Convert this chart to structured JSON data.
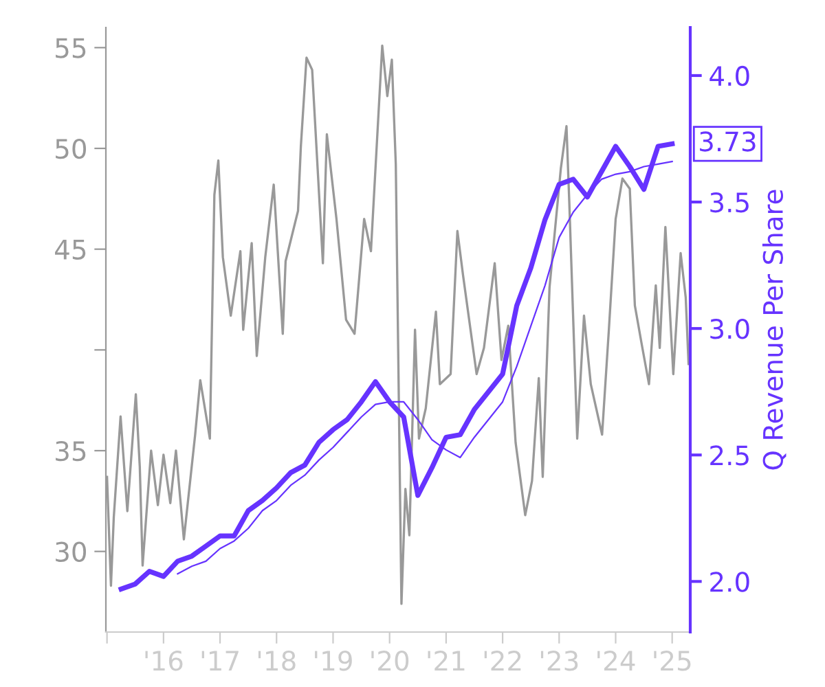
{
  "chart_data": {
    "type": "line",
    "y2label": "Q Revenue Per Share",
    "xlim": [
      2014.98,
      2025.32
    ],
    "xticks": [
      {
        "value": 2015,
        "label": null
      },
      {
        "value": 2016,
        "label": "'16"
      },
      {
        "value": 2017,
        "label": "'17"
      },
      {
        "value": 2018,
        "label": "'18"
      },
      {
        "value": 2019,
        "label": "'19"
      },
      {
        "value": 2020,
        "label": "'20"
      },
      {
        "value": 2021,
        "label": "'21"
      },
      {
        "value": 2022,
        "label": "'22"
      },
      {
        "value": 2023,
        "label": "'23"
      },
      {
        "value": 2024,
        "label": "'24"
      },
      {
        "value": 2025,
        "label": "'25"
      }
    ],
    "ylim": [
      26.0,
      56.0
    ],
    "yticks": [
      30,
      35,
      {
        "value": 40,
        "label": null
      },
      45,
      50,
      55
    ],
    "y2lim": [
      1.8,
      4.19
    ],
    "y2ticks": [
      {
        "value": 2,
        "label": "2.0"
      },
      {
        "value": 2.5,
        "label": "2.5"
      },
      {
        "value": 3,
        "label": "3.0"
      },
      {
        "value": 3.5,
        "label": "3.5"
      },
      {
        "value": 4,
        "label": "4.0"
      }
    ],
    "grid": false,
    "legend": false,
    "series": [
      {
        "color": "#999999",
        "axis": "y",
        "x": [
          2015.0,
          2015.07,
          2015.12,
          2015.24,
          2015.36,
          2015.51,
          2015.58,
          2015.63,
          2015.78,
          2015.9,
          2016.0,
          2016.12,
          2016.22,
          2016.36,
          2016.56,
          2016.65,
          2016.82,
          2016.9,
          2016.97,
          2017.05,
          2017.19,
          2017.36,
          2017.41,
          2017.56,
          2017.65,
          2017.8,
          2017.95,
          2018.11,
          2018.16,
          2018.38,
          2018.43,
          2018.53,
          2018.63,
          2018.82,
          2018.89,
          2019.06,
          2019.23,
          2019.38,
          2019.55,
          2019.67,
          2019.87,
          2019.96,
          2020.04,
          2020.11,
          2020.21,
          2020.28,
          2020.35,
          2020.45,
          2020.52,
          2020.64,
          2020.82,
          2020.89,
          2021.08,
          2021.2,
          2021.3,
          2021.54,
          2021.67,
          2021.86,
          2021.98,
          2022.1,
          2022.23,
          2022.4,
          2022.52,
          2022.64,
          2022.71,
          2022.83,
          2023.03,
          2023.13,
          2023.18,
          2023.32,
          2023.44,
          2023.56,
          2023.76,
          2023.88,
          2024.0,
          2024.12,
          2024.25,
          2024.34,
          2024.46,
          2024.59,
          2024.71,
          2024.78,
          2024.88,
          2025.02,
          2025.15,
          2025.24,
          2025.29
        ],
        "values": [
          33.7,
          28.3,
          31.7,
          36.7,
          32.0,
          37.8,
          34.2,
          29.3,
          35.0,
          32.3,
          34.8,
          32.4,
          35.0,
          30.6,
          35.8,
          38.5,
          35.6,
          47.7,
          49.4,
          44.6,
          41.7,
          44.9,
          41.0,
          45.3,
          39.7,
          44.6,
          48.2,
          40.8,
          44.4,
          46.9,
          50.1,
          54.5,
          53.9,
          44.3,
          50.7,
          46.5,
          41.5,
          40.8,
          46.5,
          44.9,
          55.1,
          52.6,
          54.4,
          49.2,
          27.4,
          33.1,
          30.8,
          41.0,
          35.6,
          37.1,
          41.9,
          38.3,
          38.8,
          45.9,
          43.7,
          38.8,
          40.1,
          44.3,
          39.5,
          41.2,
          35.4,
          31.8,
          33.5,
          38.6,
          33.7,
          43.1,
          49.0,
          51.1,
          47.3,
          35.6,
          41.7,
          38.3,
          35.8,
          41.0,
          46.5,
          48.5,
          48.0,
          42.2,
          40.3,
          38.3,
          43.2,
          40.1,
          46.1,
          38.8,
          44.8,
          42.6,
          39.3
        ]
      },
      {
        "color": "#6633ff",
        "axis": "y2",
        "x": [
          2015.25,
          2015.5,
          2015.75,
          2016.0,
          2016.25,
          2016.5,
          2016.75,
          2017.0,
          2017.25,
          2017.5,
          2017.75,
          2018.0,
          2018.25,
          2018.5,
          2018.75,
          2019.0,
          2019.25,
          2019.5,
          2019.75,
          2020.0,
          2020.25,
          2020.5,
          2020.75,
          2021.0,
          2021.25,
          2021.5,
          2021.75,
          2022.0,
          2022.25,
          2022.5,
          2022.75,
          2023.0,
          2023.25,
          2023.5,
          2023.75,
          2024.0,
          2024.25,
          2024.5,
          2024.75,
          2025.0
        ],
        "values": [
          1.97,
          1.99,
          2.04,
          2.02,
          2.08,
          2.1,
          2.14,
          2.18,
          2.18,
          2.28,
          2.32,
          2.37,
          2.43,
          2.46,
          2.55,
          2.6,
          2.64,
          2.71,
          2.79,
          2.71,
          2.65,
          2.34,
          2.45,
          2.57,
          2.58,
          2.68,
          2.75,
          2.82,
          3.09,
          3.24,
          3.43,
          3.57,
          3.59,
          3.52,
          3.62,
          3.72,
          3.64,
          3.55,
          3.72,
          3.73
        ],
        "value_labels": [
          null,
          null,
          null,
          null,
          null,
          null,
          null,
          null,
          null,
          null,
          null,
          null,
          null,
          null,
          null,
          null,
          null,
          null,
          null,
          null,
          null,
          null,
          null,
          null,
          null,
          null,
          null,
          null,
          null,
          null,
          null,
          null,
          null,
          null,
          null,
          null,
          null,
          null,
          null,
          "3.73"
        ]
      },
      {
        "color": "#6633ff",
        "axis": "y2",
        "x": [
          2016.25,
          2016.5,
          2016.75,
          2017.0,
          2017.25,
          2017.5,
          2017.75,
          2018.0,
          2018.25,
          2018.5,
          2018.75,
          2019.0,
          2019.25,
          2019.5,
          2019.75,
          2020.0,
          2020.25,
          2020.5,
          2020.75,
          2021.0,
          2021.25,
          2021.5,
          2021.75,
          2022.0,
          2022.25,
          2022.5,
          2022.75,
          2023.0,
          2023.25,
          2023.5,
          2023.75,
          2024.0,
          2024.25,
          2024.5,
          2024.75,
          2025.0
        ],
        "values": [
          2.03,
          2.06,
          2.08,
          2.13,
          2.16,
          2.21,
          2.28,
          2.32,
          2.38,
          2.42,
          2.48,
          2.53,
          2.59,
          2.65,
          2.7,
          2.71,
          2.71,
          2.64,
          2.56,
          2.52,
          2.49,
          2.57,
          2.64,
          2.71,
          2.85,
          3.01,
          3.17,
          3.36,
          3.46,
          3.53,
          3.59,
          3.61,
          3.62,
          3.64,
          3.65,
          3.66
        ]
      }
    ]
  }
}
